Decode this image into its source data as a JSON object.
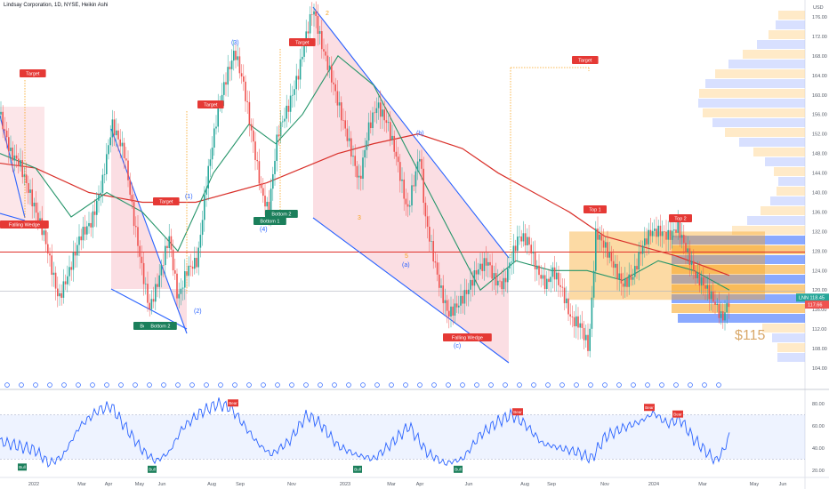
{
  "header": {
    "title": "Lindsay Corporation, 1D, NYSE, Heikin Ashi"
  },
  "price_axis": {
    "currency": "USD"
  },
  "chart_data": [
    {
      "type": "candlestick",
      "title": "Lindsay Corporation, 1D, NYSE, Heikin Ashi",
      "x_ticks": [
        "2022",
        "Mar",
        "Apr",
        "May",
        "Jun",
        "Aug",
        "Sep",
        "Nov",
        "2023",
        "Mar",
        "Apr",
        "Jun",
        "Aug",
        "Sep",
        "Nov",
        "2024",
        "Mar",
        "May",
        "Jun"
      ],
      "y_ticks": [
        104,
        108,
        112,
        116,
        120,
        124,
        128,
        132,
        136,
        140,
        144,
        148,
        152,
        156,
        160,
        164,
        168,
        172,
        176
      ],
      "ylim": [
        102,
        178
      ],
      "last_price": "118.45",
      "second_price": "117.66",
      "ticker_badge": "LNN",
      "price_path": [
        [
          0,
          156
        ],
        [
          12,
          148
        ],
        [
          22,
          146
        ],
        [
          33,
          140
        ],
        [
          50,
          131
        ],
        [
          66,
          118
        ],
        [
          78,
          124
        ],
        [
          90,
          131
        ],
        [
          103,
          134
        ],
        [
          115,
          142
        ],
        [
          126,
          154
        ],
        [
          140,
          148
        ],
        [
          150,
          135
        ],
        [
          160,
          124
        ],
        [
          168,
          116
        ],
        [
          178,
          122
        ],
        [
          190,
          131
        ],
        [
          200,
          118
        ],
        [
          210,
          124
        ],
        [
          222,
          126
        ],
        [
          232,
          142
        ],
        [
          245,
          157
        ],
        [
          255,
          164
        ],
        [
          264,
          169
        ],
        [
          274,
          162
        ],
        [
          283,
          152
        ],
        [
          294,
          140
        ],
        [
          302,
          136
        ],
        [
          312,
          152
        ],
        [
          325,
          158
        ],
        [
          335,
          164
        ],
        [
          344,
          172
        ],
        [
          352,
          178
        ],
        [
          362,
          170
        ],
        [
          372,
          164
        ],
        [
          382,
          157
        ],
        [
          394,
          149
        ],
        [
          404,
          142
        ],
        [
          414,
          153
        ],
        [
          424,
          158
        ],
        [
          436,
          154
        ],
        [
          446,
          147
        ],
        [
          458,
          136
        ],
        [
          472,
          148
        ],
        [
          478,
          135
        ],
        [
          486,
          128
        ],
        [
          494,
          121
        ],
        [
          504,
          115
        ],
        [
          515,
          117
        ],
        [
          526,
          120
        ],
        [
          536,
          124
        ],
        [
          548,
          126
        ],
        [
          556,
          122
        ],
        [
          566,
          121
        ],
        [
          574,
          126
        ],
        [
          583,
          131
        ],
        [
          594,
          130
        ],
        [
          604,
          124
        ],
        [
          614,
          121
        ],
        [
          622,
          124
        ],
        [
          632,
          120
        ],
        [
          642,
          114
        ],
        [
          652,
          113
        ],
        [
          662,
          108
        ],
        [
          670,
          132
        ],
        [
          680,
          129
        ],
        [
          690,
          125
        ],
        [
          700,
          121
        ],
        [
          712,
          123
        ],
        [
          722,
          129
        ],
        [
          732,
          132
        ],
        [
          742,
          132
        ],
        [
          752,
          131
        ],
        [
          762,
          133
        ],
        [
          772,
          128
        ],
        [
          782,
          123
        ],
        [
          792,
          121
        ],
        [
          802,
          118
        ],
        [
          812,
          114
        ],
        [
          820,
          118
        ]
      ],
      "ma_red": [
        [
          0,
          146
        ],
        [
          40,
          145
        ],
        [
          100,
          140
        ],
        [
          160,
          138
        ],
        [
          220,
          138
        ],
        [
          260,
          140
        ],
        [
          300,
          142
        ],
        [
          340,
          145
        ],
        [
          380,
          148
        ],
        [
          420,
          150
        ],
        [
          470,
          152
        ],
        [
          520,
          149
        ],
        [
          560,
          144
        ],
        [
          600,
          140
        ],
        [
          640,
          136
        ],
        [
          680,
          131
        ],
        [
          720,
          129
        ],
        [
          760,
          127
        ],
        [
          790,
          125
        ],
        [
          820,
          123
        ]
      ],
      "ma_green": [
        [
          0,
          148
        ],
        [
          40,
          145
        ],
        [
          80,
          135
        ],
        [
          120,
          140
        ],
        [
          160,
          136
        ],
        [
          200,
          128
        ],
        [
          240,
          144
        ],
        [
          280,
          154
        ],
        [
          310,
          150
        ],
        [
          340,
          156
        ],
        [
          380,
          168
        ],
        [
          420,
          162
        ],
        [
          460,
          148
        ],
        [
          500,
          134
        ],
        [
          540,
          120
        ],
        [
          580,
          126
        ],
        [
          620,
          124
        ],
        [
          660,
          124
        ],
        [
          700,
          122
        ],
        [
          740,
          126
        ],
        [
          780,
          124
        ],
        [
          820,
          120
        ]
      ],
      "horizontal_levels": [
        127.8,
        119.8
      ],
      "annotations": {
        "targets": [
          "Target",
          "Target",
          "Target",
          "Target",
          "Target"
        ],
        "patterns": [
          "Falling Wedge",
          "Falling Wedge"
        ],
        "bottoms": [
          "Bottom 2",
          "Bottom 2",
          "Bottom 1",
          "Bottom 2"
        ],
        "tops": [
          "Top 1",
          "Top 2"
        ],
        "elliott_waves": [
          "(1)",
          "(2)",
          "(3)",
          "(4)",
          "(a)",
          "(b)",
          "(c)",
          "2",
          "3",
          "5"
        ],
        "price_target": "$115"
      }
    },
    {
      "type": "line",
      "title": "",
      "y_ticks": [
        20,
        40,
        60,
        80
      ],
      "ylim": [
        15,
        85
      ],
      "band": [
        30,
        70
      ],
      "values_note": "",
      "signals": {
        "bull": [
          "Bull",
          "Bull",
          "Bull",
          "Bull"
        ],
        "bear": [
          "Bear",
          "Bear",
          "Bear",
          "Bear"
        ]
      },
      "rsi_path": [
        [
          0,
          46
        ],
        [
          20,
          42
        ],
        [
          40,
          38
        ],
        [
          55,
          26
        ],
        [
          70,
          32
        ],
        [
          90,
          60
        ],
        [
          110,
          74
        ],
        [
          125,
          78
        ],
        [
          140,
          60
        ],
        [
          160,
          38
        ],
        [
          175,
          28
        ],
        [
          190,
          36
        ],
        [
          205,
          58
        ],
        [
          225,
          72
        ],
        [
          245,
          80
        ],
        [
          260,
          76
        ],
        [
          275,
          60
        ],
        [
          290,
          44
        ],
        [
          305,
          34
        ],
        [
          325,
          46
        ],
        [
          345,
          70
        ],
        [
          360,
          62
        ],
        [
          380,
          42
        ],
        [
          400,
          34
        ],
        [
          420,
          30
        ],
        [
          440,
          44
        ],
        [
          460,
          60
        ],
        [
          480,
          36
        ],
        [
          500,
          26
        ],
        [
          520,
          30
        ],
        [
          540,
          52
        ],
        [
          560,
          64
        ],
        [
          575,
          70
        ],
        [
          590,
          62
        ],
        [
          610,
          44
        ],
        [
          630,
          40
        ],
        [
          650,
          36
        ],
        [
          665,
          30
        ],
        [
          680,
          50
        ],
        [
          700,
          58
        ],
        [
          720,
          64
        ],
        [
          735,
          72
        ],
        [
          750,
          62
        ],
        [
          765,
          66
        ],
        [
          780,
          48
        ],
        [
          795,
          36
        ],
        [
          805,
          28
        ],
        [
          815,
          40
        ],
        [
          820,
          52
        ]
      ]
    }
  ]
}
